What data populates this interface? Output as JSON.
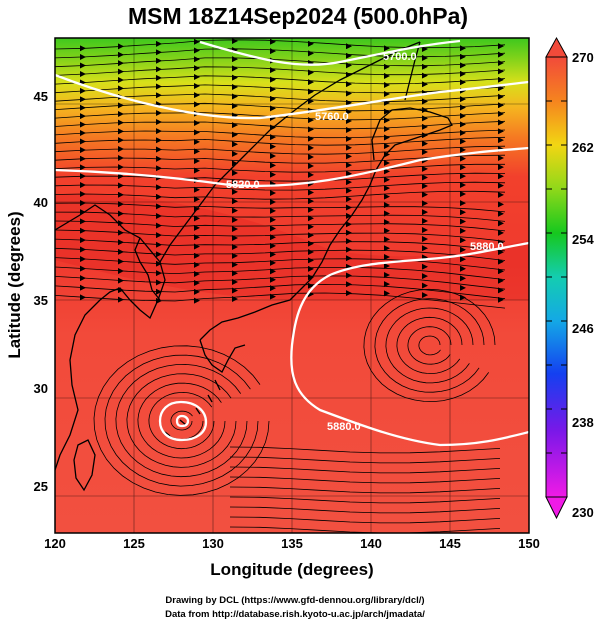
{
  "title": "MSM 18Z14Sep2024 (500.0hPa)",
  "axes": {
    "xlabel": "Longitude (degrees)",
    "ylabel": "Latitude  (degrees)",
    "xticks": [
      "120",
      "125",
      "130",
      "135",
      "140",
      "145",
      "150"
    ],
    "yticks": [
      "25",
      "30",
      "35",
      "40",
      "45"
    ]
  },
  "colorbar": {
    "labels": [
      "270",
      "262",
      "254",
      "246",
      "238",
      "230"
    ]
  },
  "contours": [
    {
      "label": "5700.0"
    },
    {
      "label": "5760.0"
    },
    {
      "label": "5820.0"
    },
    {
      "label": "5880.0"
    },
    {
      "label": "5880.0"
    },
    {
      "label": "5880.0"
    }
  ],
  "credits": [
    "Drawing by DCL (https://www.gfd-dennou.org/library/dcl/)",
    "Data from http://database.rish.kyoto-u.ac.jp/arch/jmadata/"
  ],
  "chart_data": {
    "type": "heatmap",
    "title": "MSM 18Z14Sep2024 (500.0hPa)",
    "xlabel": "Longitude (degrees)",
    "ylabel": "Latitude  (degrees)",
    "xlim": [
      120,
      150
    ],
    "ylim": [
      22.4,
      47.6
    ],
    "colorbar_range": [
      230,
      270
    ],
    "contour_levels": [
      5700,
      5760,
      5820,
      5880
    ],
    "colors": {
      "warm": "#f2473a",
      "orange": "#f58a1f",
      "yellow": "#f2e313",
      "green": "#1fc81a",
      "cyan": "#13d0e0",
      "blue": "#1432f0",
      "magenta": "#f01ae6"
    },
    "features": [
      "typhoon circulation near 128E 29N",
      "anticyclone near 144E 32N"
    ]
  }
}
